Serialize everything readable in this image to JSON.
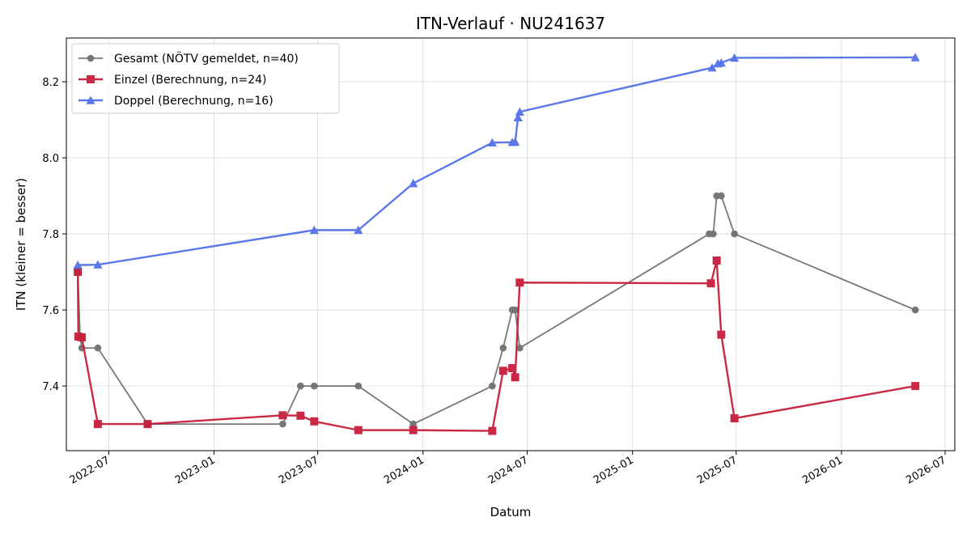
{
  "chart_data": {
    "type": "line",
    "title": "ITN-Verlauf · NU241637",
    "xlabel": "Datum",
    "ylabel": "ITN  (kleiner = besser)",
    "x_axis_type": "date",
    "xlim": [
      "2022-04-18",
      "2026-07-18"
    ],
    "ylim": [
      7.23,
      8.315
    ],
    "x_ticks": [
      "2022-07-01",
      "2023-01-01",
      "2023-07-01",
      "2024-01-01",
      "2024-07-01",
      "2025-01-01",
      "2025-07-01",
      "2026-01-01",
      "2026-07-01"
    ],
    "x_tick_labels": [
      "2022-07",
      "2023-01",
      "2023-07",
      "2024-01",
      "2024-07",
      "2025-01",
      "2025-07",
      "2026-01",
      "2026-07"
    ],
    "y_ticks": [
      7.4,
      7.6,
      7.8,
      8.0,
      8.2
    ],
    "y_tick_labels": [
      "7.4",
      "7.6",
      "7.8",
      "8.0",
      "8.2"
    ],
    "grid": true,
    "legend_position": "top-left",
    "series": [
      {
        "name": "Gesamt (NÖTV gemeldet, n=40)",
        "color": "#444444",
        "marker": "circle",
        "points": [
          [
            "2022-05-08",
            7.7
          ],
          [
            "2022-05-12",
            7.53
          ],
          [
            "2022-05-15",
            7.5
          ],
          [
            "2022-06-12",
            7.5
          ],
          [
            "2022-09-07",
            7.3
          ],
          [
            "2023-05-01",
            7.3
          ],
          [
            "2023-06-01",
            7.4
          ],
          [
            "2023-06-25",
            7.4
          ],
          [
            "2023-09-10",
            7.4
          ],
          [
            "2023-12-15",
            7.3
          ],
          [
            "2024-05-01",
            7.4
          ],
          [
            "2024-05-20",
            7.5
          ],
          [
            "2024-06-05",
            7.6
          ],
          [
            "2024-06-10",
            7.6
          ],
          [
            "2024-06-18",
            7.5
          ],
          [
            "2025-05-15",
            7.8
          ],
          [
            "2025-05-22",
            7.8
          ],
          [
            "2025-05-28",
            7.9
          ],
          [
            "2025-06-05",
            7.9
          ],
          [
            "2025-06-28",
            7.8
          ],
          [
            "2026-05-10",
            7.6
          ]
        ]
      },
      {
        "name": "Einzel (Berechnung, n=24)",
        "color": "#c81e3c",
        "marker": "square",
        "points": [
          [
            "2022-05-08",
            7.7
          ],
          [
            "2022-05-09",
            7.53
          ],
          [
            "2022-05-15",
            7.528
          ],
          [
            "2022-06-12",
            7.3
          ],
          [
            "2022-09-07",
            7.3
          ],
          [
            "2023-05-01",
            7.323
          ],
          [
            "2023-06-01",
            7.322
          ],
          [
            "2023-06-25",
            7.307
          ],
          [
            "2023-09-10",
            7.284
          ],
          [
            "2023-12-15",
            7.284
          ],
          [
            "2024-05-01",
            7.282
          ],
          [
            "2024-05-20",
            7.44
          ],
          [
            "2024-06-05",
            7.447
          ],
          [
            "2024-06-10",
            7.423
          ],
          [
            "2024-06-18",
            7.672
          ],
          [
            "2025-05-18",
            7.67
          ],
          [
            "2025-05-28",
            7.73
          ],
          [
            "2025-06-05",
            7.535
          ],
          [
            "2025-06-28",
            7.315
          ],
          [
            "2026-05-10",
            7.4
          ]
        ]
      },
      {
        "name": "Doppel (Berechnung, n=16)",
        "color": "#4a6ae8",
        "marker": "triangle",
        "points": [
          [
            "2022-05-08",
            7.718
          ],
          [
            "2022-06-12",
            7.719
          ],
          [
            "2023-06-25",
            7.81
          ],
          [
            "2023-09-10",
            7.81
          ],
          [
            "2023-12-15",
            7.933
          ],
          [
            "2024-05-01",
            8.04
          ],
          [
            "2024-06-05",
            8.041
          ],
          [
            "2024-06-10",
            8.042
          ],
          [
            "2024-06-15",
            8.106
          ],
          [
            "2024-06-18",
            8.121
          ],
          [
            "2025-05-20",
            8.237
          ],
          [
            "2025-05-30",
            8.248
          ],
          [
            "2025-06-05",
            8.25
          ],
          [
            "2025-06-28",
            8.263
          ],
          [
            "2026-05-10",
            8.264
          ]
        ]
      }
    ]
  }
}
